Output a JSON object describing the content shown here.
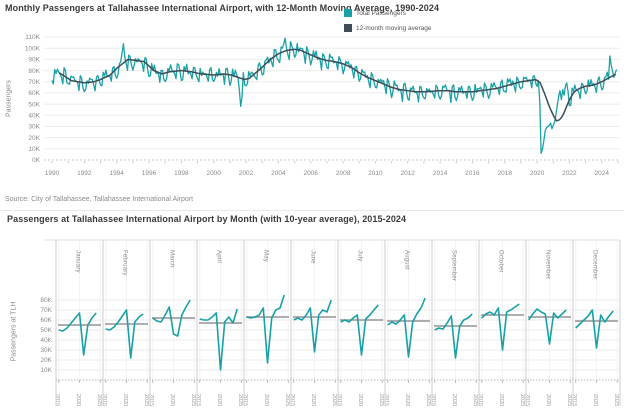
{
  "page": {
    "background": "#ffffff"
  },
  "colors": {
    "teal": "#18a1a6",
    "dark_slate": "#3d4c56",
    "grid": "#ebebeb",
    "grid_faint": "#f3f3f3",
    "zero_line": "#cccccc",
    "separator": "#cccccc",
    "panel_top_border": "#dddddd",
    "avg_line": "#949494",
    "axis_text": "#8b8b8b",
    "title_text": "#3a3a3a",
    "source_text": "#8a8a8a"
  },
  "source_note": "Source: City of Tallahassee, Tallahassee International Airport",
  "chart_data": [
    {
      "type": "line",
      "title": "Monthly Passengers at Tallahassee International Airport, with 12-Month Moving Average, 1990-2024",
      "ylabel": "Passengers",
      "xlabel": "",
      "x_range": [
        1990,
        2025
      ],
      "ylim_k": [
        0,
        110
      ],
      "y_ticks_k": [
        0,
        10,
        20,
        30,
        40,
        50,
        60,
        70,
        80,
        90,
        100,
        110
      ],
      "x_ticks": [
        1990,
        1992,
        1994,
        1996,
        1998,
        2000,
        2002,
        2004,
        2006,
        2008,
        2010,
        2012,
        2014,
        2016,
        2018,
        2020,
        2022,
        2024
      ],
      "grid": "horizontal",
      "legend_position": "top-right",
      "series": [
        {
          "name": "Total Passengers",
          "color": "#18a1a6",
          "start_year": 1990,
          "months": 420,
          "seasonal_offsets_k": [
            -7,
            -6,
            4,
            1,
            4,
            0,
            1,
            -2,
            -8,
            5,
            4,
            -3
          ],
          "noise_amp_k": 2.5,
          "override_segments_year_valueK": [
            [
              [
                1994.25,
                88
              ],
              [
                1994.333,
                96
              ],
              [
                1994.417,
                104
              ],
              [
                1994.5,
                92
              ]
            ],
            [
              [
                2001.583,
                63
              ],
              [
                2001.667,
                48
              ],
              [
                2001.75,
                56
              ],
              [
                2001.833,
                64
              ]
            ],
            [
              [
                2004.25,
                100
              ],
              [
                2004.333,
                104
              ],
              [
                2004.417,
                109
              ],
              [
                2004.5,
                100
              ]
            ],
            [
              [
                2020.083,
                71
              ],
              [
                2020.167,
                52
              ],
              [
                2020.25,
                6
              ],
              [
                2020.333,
                10
              ],
              [
                2020.417,
                17
              ],
              [
                2020.5,
                26
              ],
              [
                2020.583,
                29
              ],
              [
                2020.667,
                30
              ],
              [
                2020.75,
                31
              ],
              [
                2020.833,
                33
              ],
              [
                2020.917,
                28
              ],
              [
                2021.0,
                31
              ],
              [
                2021.083,
                34
              ],
              [
                2021.167,
                41
              ],
              [
                2021.25,
                49
              ],
              [
                2021.333,
                57
              ],
              [
                2021.417,
                62
              ],
              [
                2021.5,
                54
              ],
              [
                2021.583,
                63
              ],
              [
                2021.667,
                58
              ],
              [
                2021.75,
                66
              ],
              [
                2021.833,
                69
              ],
              [
                2021.917,
                61
              ]
            ],
            [
              [
                2024.417,
                88
              ],
              [
                2024.5,
                93
              ],
              [
                2024.583,
                85
              ],
              [
                2024.667,
                79
              ],
              [
                2024.75,
                74
              ],
              [
                2024.833,
                78
              ],
              [
                2024.917,
                81
              ]
            ]
          ]
        },
        {
          "name": "12-month moving average",
          "color": "#3d4c56",
          "start_year": 1990.45,
          "end_year": 2024.92,
          "anchors_year_valueK": [
            [
              1990.0,
              76
            ],
            [
              1990.45,
              78
            ],
            [
              1991.2,
              71
            ],
            [
              1992.0,
              69
            ],
            [
              1992.6,
              70
            ],
            [
              1993.0,
              72
            ],
            [
              1993.6,
              76
            ],
            [
              1994.0,
              82
            ],
            [
              1994.7,
              90
            ],
            [
              1995.2,
              89
            ],
            [
              1995.7,
              88
            ],
            [
              1996.3,
              80
            ],
            [
              1996.8,
              77
            ],
            [
              1997.3,
              79
            ],
            [
              1998.0,
              80
            ],
            [
              1998.6,
              79
            ],
            [
              1999.2,
              77
            ],
            [
              2000.0,
              76
            ],
            [
              2000.6,
              77
            ],
            [
              2001.1,
              76
            ],
            [
              2001.5,
              74
            ],
            [
              2001.9,
              72
            ],
            [
              2002.2,
              73
            ],
            [
              2002.6,
              78
            ],
            [
              2003.0,
              83
            ],
            [
              2003.5,
              90
            ],
            [
              2004.0,
              95
            ],
            [
              2004.5,
              98
            ],
            [
              2005.0,
              99
            ],
            [
              2005.4,
              98
            ],
            [
              2006.0,
              94
            ],
            [
              2006.5,
              91
            ],
            [
              2007.0,
              89
            ],
            [
              2007.5,
              88
            ],
            [
              2008.0,
              86
            ],
            [
              2008.5,
              83
            ],
            [
              2009.0,
              78
            ],
            [
              2009.5,
              74
            ],
            [
              2010.0,
              71
            ],
            [
              2010.5,
              68
            ],
            [
              2011.0,
              65
            ],
            [
              2011.5,
              63
            ],
            [
              2012.0,
              62
            ],
            [
              2012.5,
              61
            ],
            [
              2013.0,
              61
            ],
            [
              2013.5,
              61.5
            ],
            [
              2014.0,
              62
            ],
            [
              2014.5,
              62
            ],
            [
              2015.0,
              61
            ],
            [
              2015.5,
              61
            ],
            [
              2016.0,
              61
            ],
            [
              2016.5,
              62
            ],
            [
              2017.0,
              63
            ],
            [
              2017.5,
              64
            ],
            [
              2018.0,
              66
            ],
            [
              2018.5,
              68
            ],
            [
              2019.0,
              70
            ],
            [
              2019.5,
              71
            ],
            [
              2019.92,
              72
            ],
            [
              2020.2,
              69
            ],
            [
              2020.5,
              58
            ],
            [
              2020.75,
              48
            ],
            [
              2021.0,
              40
            ],
            [
              2021.2,
              35
            ],
            [
              2021.4,
              36
            ],
            [
              2021.6,
              40
            ],
            [
              2021.8,
              47
            ],
            [
              2022.0,
              54
            ],
            [
              2022.3,
              61
            ],
            [
              2022.6,
              64
            ],
            [
              2023.0,
              66
            ],
            [
              2023.5,
              67
            ],
            [
              2024.0,
              70
            ],
            [
              2024.5,
              74
            ],
            [
              2024.92,
              77
            ]
          ]
        }
      ]
    },
    {
      "type": "line_small_multiples",
      "title": "Passengers at Tallahassee International Airport by Month (with 10-year average),  2015-2024",
      "ylabel": "Passengers at TLH",
      "years": [
        2015,
        2016,
        2017,
        2018,
        2019,
        2020,
        2021,
        2022,
        2023,
        2024
      ],
      "y_ticks_k": [
        10,
        20,
        30,
        40,
        50,
        60,
        70,
        80
      ],
      "x_ticks": [
        2015,
        2020,
        2025
      ],
      "average_line_color": "#949494",
      "panels": [
        {
          "month": "January",
          "avg_k": 55,
          "values_k": [
            50,
            49,
            52,
            57,
            62,
            67,
            25,
            55,
            62,
            67
          ]
        },
        {
          "month": "February",
          "avg_k": 56,
          "values_k": [
            51,
            50,
            53,
            58,
            64,
            70,
            22,
            58,
            63,
            66
          ]
        },
        {
          "month": "March",
          "avg_k": 62,
          "values_k": [
            62,
            59,
            58,
            65,
            73,
            46,
            44,
            65,
            73,
            80
          ]
        },
        {
          "month": "April",
          "avg_k": 57,
          "values_k": [
            61,
            60,
            60,
            63,
            67,
            10,
            58,
            63,
            57,
            71
          ]
        },
        {
          "month": "May",
          "avg_k": 63,
          "values_k": [
            63,
            62,
            63,
            65,
            72,
            17,
            62,
            70,
            72,
            85
          ]
        },
        {
          "month": "June",
          "avg_k": 63,
          "values_k": [
            60,
            62,
            60,
            65,
            72,
            28,
            65,
            70,
            68,
            80
          ]
        },
        {
          "month": "July",
          "avg_k": 60,
          "values_k": [
            58,
            60,
            58,
            62,
            65,
            25,
            61,
            65,
            70,
            75
          ]
        },
        {
          "month": "August",
          "avg_k": 59,
          "values_k": [
            55,
            58,
            56,
            60,
            65,
            23,
            58,
            66,
            72,
            82
          ]
        },
        {
          "month": "September",
          "avg_k": 54,
          "values_k": [
            50,
            52,
            51,
            57,
            64,
            22,
            54,
            60,
            62,
            66
          ]
        },
        {
          "month": "October",
          "avg_k": 65,
          "values_k": [
            62,
            66,
            68,
            65,
            72,
            30,
            68,
            70,
            73,
            76
          ]
        },
        {
          "month": "November",
          "avg_k": 63,
          "values_k": [
            60,
            66,
            71,
            68,
            66,
            36,
            67,
            62,
            66,
            70
          ]
        },
        {
          "month": "December",
          "avg_k": 59,
          "values_k": [
            52,
            56,
            60,
            64,
            70,
            32,
            65,
            58,
            64,
            69
          ]
        }
      ]
    }
  ]
}
